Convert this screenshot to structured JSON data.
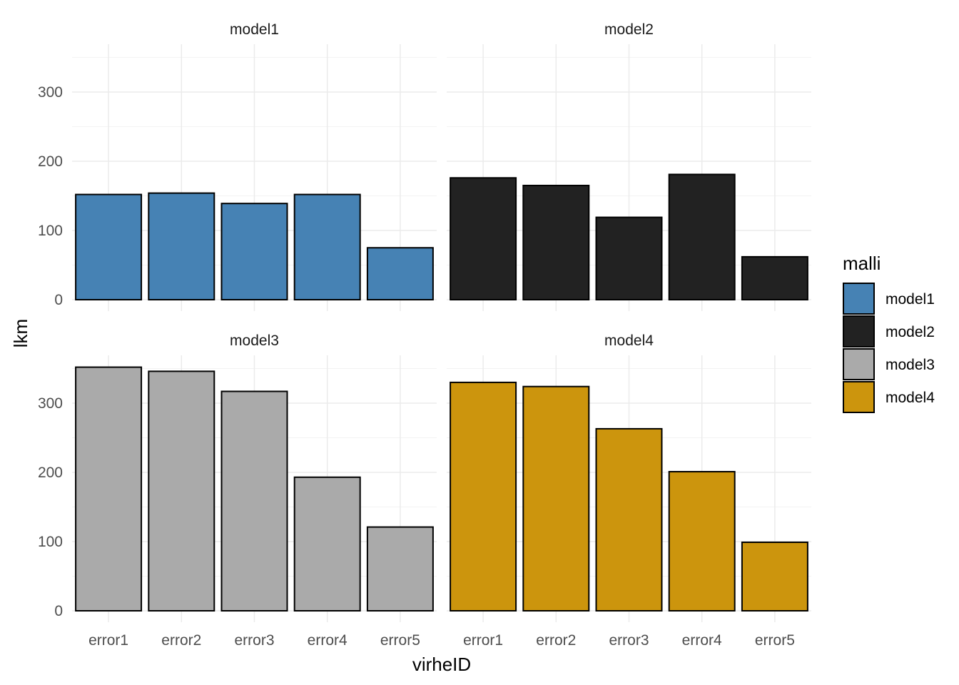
{
  "chart_data": {
    "type": "bar",
    "layout": "facet_wrap_2x2",
    "categories": [
      "error1",
      "error2",
      "error3",
      "error4",
      "error5"
    ],
    "xlabel": "virheID",
    "ylabel": "lkm",
    "ylim": [
      0,
      365
    ],
    "yticks": [
      0,
      100,
      200,
      300
    ],
    "y_tick_labels": [
      "0",
      "100",
      "200",
      "300"
    ],
    "grid": true,
    "legend": {
      "title": "malli",
      "position": "right",
      "entries": [
        {
          "label": "model1",
          "color": "#4682B4"
        },
        {
          "label": "model2",
          "color": "#222222"
        },
        {
          "label": "model3",
          "color": "#AAAAAA"
        },
        {
          "label": "model4",
          "color": "#CC950D"
        }
      ]
    },
    "series": [
      {
        "name": "model1",
        "color": "#4682B4",
        "values": [
          152,
          154,
          139,
          152,
          75
        ]
      },
      {
        "name": "model2",
        "color": "#222222",
        "values": [
          176,
          165,
          119,
          181,
          62
        ]
      },
      {
        "name": "model3",
        "color": "#AAAAAA",
        "values": [
          352,
          346,
          317,
          193,
          121
        ]
      },
      {
        "name": "model4",
        "color": "#CC950D",
        "values": [
          330,
          324,
          263,
          201,
          99
        ]
      }
    ]
  }
}
